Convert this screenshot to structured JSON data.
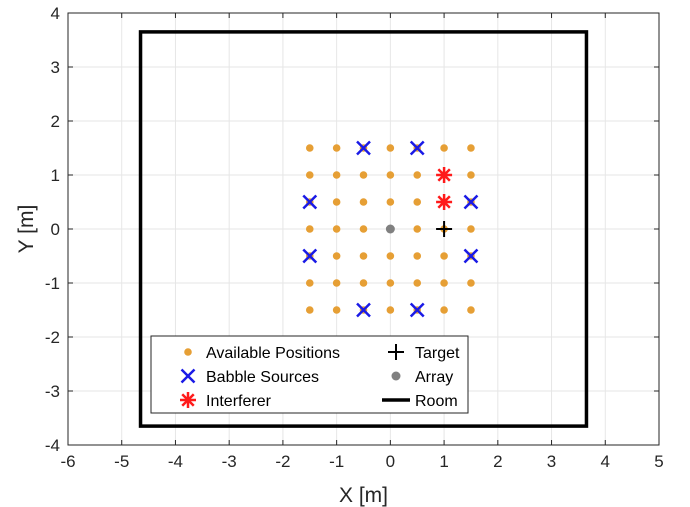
{
  "chart_data": {
    "type": "scatter",
    "xlabel": "X [m]",
    "ylabel": "Y [m]",
    "xlim": [
      -6,
      5
    ],
    "ylim": [
      -4,
      4
    ],
    "xticks": [
      -6,
      -5,
      -4,
      -3,
      -2,
      -1,
      0,
      1,
      2,
      3,
      4,
      5
    ],
    "yticks": [
      -4,
      -3,
      -2,
      -1,
      0,
      1,
      2,
      3,
      4
    ],
    "grid": true,
    "legend_position": "bottom-center",
    "series": [
      {
        "name": "Available Positions",
        "marker": "dot",
        "color": "#e69f35",
        "x": [
          -1.5,
          -1.0,
          -0.5,
          0.0,
          0.5,
          1.0,
          1.5
        ],
        "y": [
          -1.5,
          -1.0,
          -0.5,
          0.0,
          0.5,
          1.0,
          1.5
        ],
        "grid_points": true
      },
      {
        "name": "Babble Sources",
        "marker": "x",
        "color": "#1a1ae6",
        "points": [
          [
            -0.5,
            1.5
          ],
          [
            0.5,
            1.5
          ],
          [
            -1.5,
            0.5
          ],
          [
            1.5,
            0.5
          ],
          [
            -1.5,
            -0.5
          ],
          [
            1.5,
            -0.5
          ],
          [
            -0.5,
            -1.5
          ],
          [
            0.5,
            -1.5
          ]
        ]
      },
      {
        "name": "Interferer",
        "marker": "asterisk",
        "color": "#ff1a1a",
        "points": [
          [
            1.0,
            1.0
          ],
          [
            1.0,
            0.5
          ]
        ]
      },
      {
        "name": "Target",
        "marker": "plus",
        "color": "#000000",
        "points": [
          [
            1.0,
            0.0
          ]
        ]
      },
      {
        "name": "Array",
        "marker": "dot",
        "color": "#808080",
        "points": [
          [
            0.0,
            0.0
          ]
        ]
      },
      {
        "name": "Room",
        "marker": "line",
        "color": "#000000",
        "rect": {
          "x0": -4.65,
          "x1": 3.65,
          "y0": -3.65,
          "y1": 3.65
        }
      }
    ],
    "legend_order": [
      "Available Positions",
      "Target",
      "Babble Sources",
      "Array",
      "Interferer",
      "Room"
    ]
  }
}
